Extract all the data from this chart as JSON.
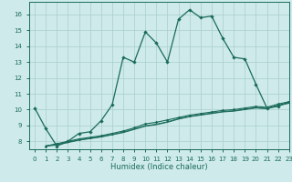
{
  "xlabel": "Humidex (Indice chaleur)",
  "xlim": [
    -0.5,
    23
  ],
  "ylim": [
    7.5,
    16.8
  ],
  "yticks": [
    8,
    9,
    10,
    11,
    12,
    13,
    14,
    15,
    16
  ],
  "xticks": [
    0,
    1,
    2,
    3,
    4,
    5,
    6,
    7,
    8,
    9,
    10,
    11,
    12,
    13,
    14,
    15,
    16,
    17,
    18,
    19,
    20,
    21,
    22,
    23
  ],
  "bg_color": "#ceeaea",
  "grid_color": "#aacece",
  "line_color": "#1a6b5a",
  "series1_x": [
    0,
    1,
    2,
    3,
    4,
    5,
    6,
    7,
    8,
    9,
    10,
    11,
    12,
    13,
    14,
    15,
    16,
    17,
    18,
    19,
    20,
    21,
    22,
    23
  ],
  "series1_y": [
    10.1,
    8.8,
    7.7,
    8.0,
    8.5,
    8.6,
    9.3,
    10.3,
    13.3,
    13.0,
    14.9,
    14.2,
    13.0,
    15.7,
    16.3,
    15.8,
    15.9,
    14.5,
    13.3,
    13.2,
    11.6,
    10.1,
    10.2,
    10.5
  ],
  "series2_x": [
    1,
    2,
    3,
    4,
    5,
    6,
    7,
    8,
    9,
    10,
    11,
    12,
    13,
    14,
    15,
    16,
    17,
    18,
    19,
    20,
    21,
    22,
    23
  ],
  "series2_y": [
    7.7,
    7.85,
    8.0,
    8.15,
    8.25,
    8.35,
    8.5,
    8.65,
    8.85,
    9.1,
    9.2,
    9.35,
    9.5,
    9.65,
    9.75,
    9.85,
    9.95,
    10.0,
    10.1,
    10.2,
    10.15,
    10.35,
    10.5
  ],
  "series3_x": [
    1,
    2,
    3,
    4,
    5,
    6,
    7,
    8,
    9,
    10,
    11,
    12,
    13,
    14,
    15,
    16,
    17,
    18,
    19,
    20,
    21,
    22,
    23
  ],
  "series3_y": [
    7.72,
    7.8,
    7.95,
    8.1,
    8.2,
    8.3,
    8.44,
    8.58,
    8.78,
    8.98,
    9.08,
    9.23,
    9.43,
    9.58,
    9.68,
    9.78,
    9.88,
    9.93,
    10.03,
    10.13,
    10.08,
    10.28,
    10.43
  ],
  "series4_x": [
    1,
    2,
    3,
    4,
    5,
    6,
    7,
    8,
    9,
    10,
    11,
    12,
    13,
    14,
    15,
    16,
    17,
    18,
    19,
    20,
    21,
    22,
    23
  ],
  "series4_y": [
    7.69,
    7.77,
    7.92,
    8.07,
    8.17,
    8.27,
    8.41,
    8.55,
    8.75,
    8.95,
    9.05,
    9.2,
    9.4,
    9.55,
    9.65,
    9.75,
    9.85,
    9.9,
    10.0,
    10.1,
    10.05,
    10.25,
    10.4
  ]
}
